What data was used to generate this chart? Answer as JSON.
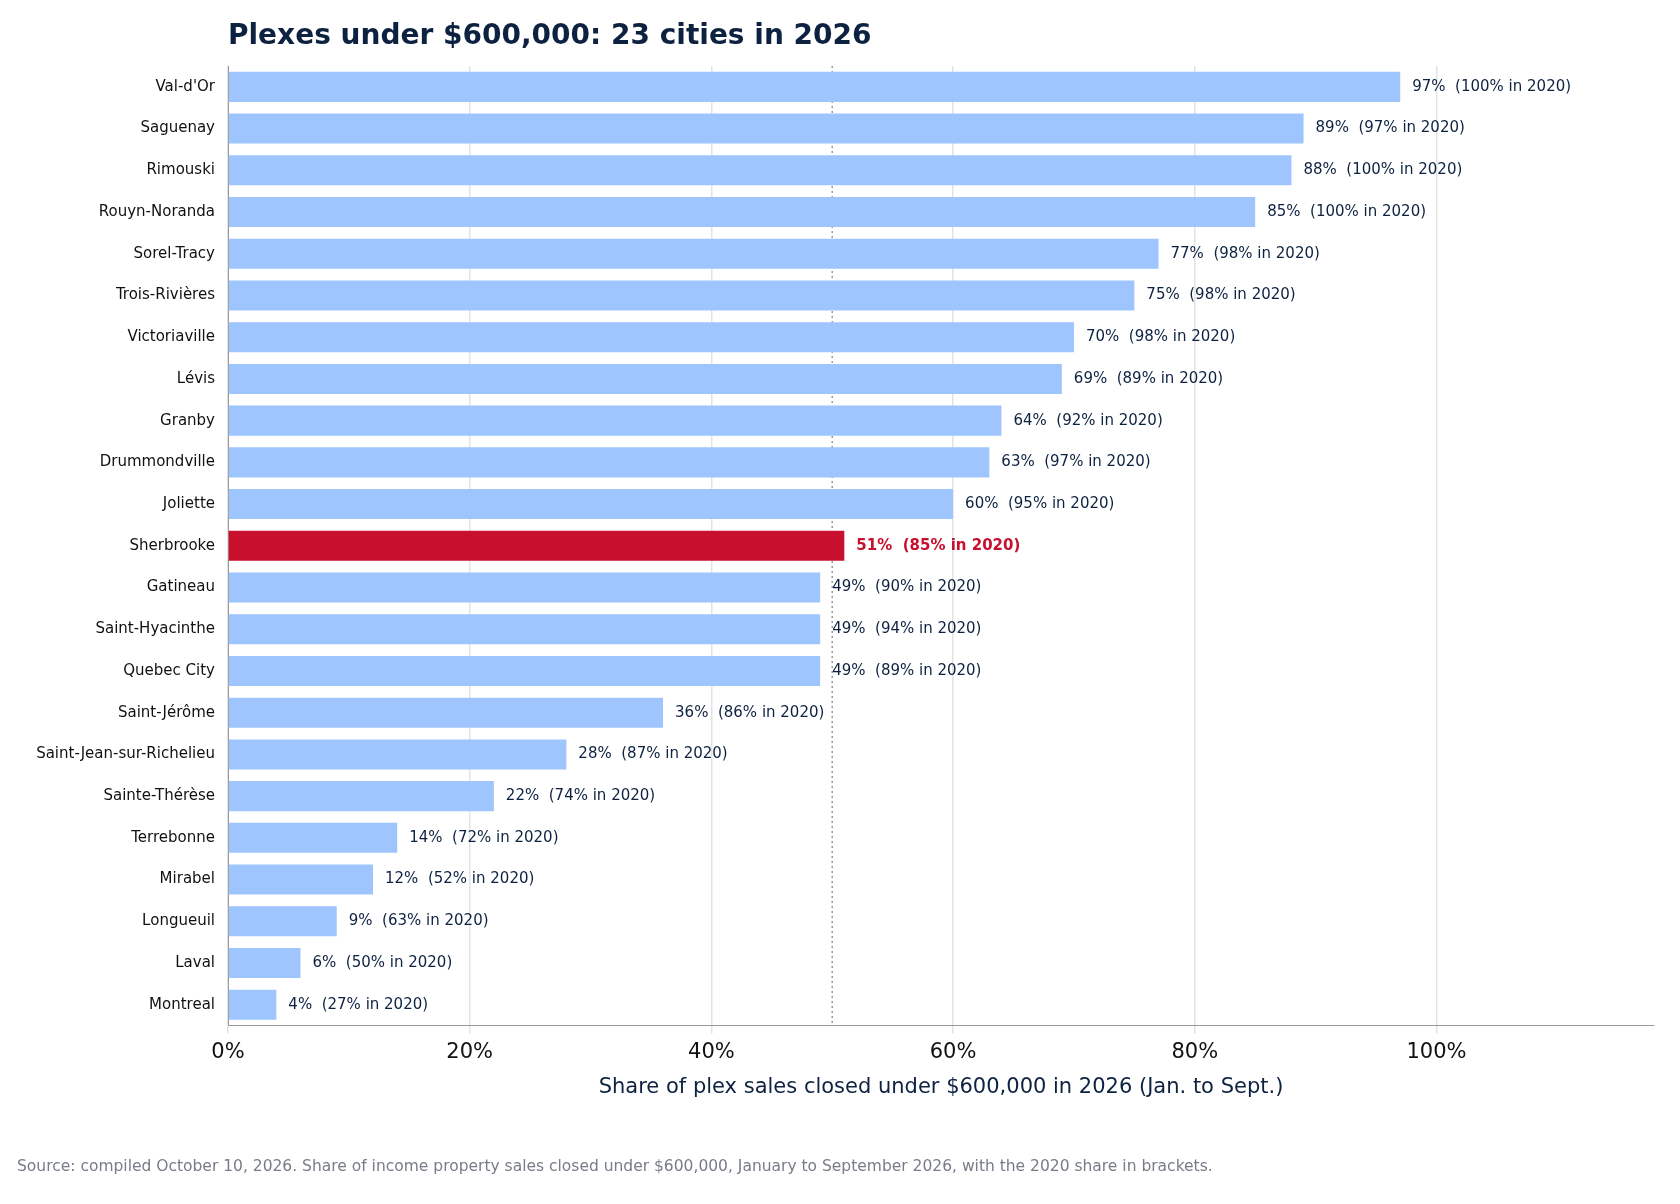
{
  "chart_data": {
    "type": "bar",
    "orientation": "horizontal",
    "title": "Plexes under $600,000: 23 cities in 2026",
    "xlabel": "Share of plex sales closed under $600,000 in 2026 (Jan. to Sept.)",
    "categories": [
      "Val-d'Or",
      "Saguenay",
      "Rimouski",
      "Rouyn-Noranda",
      "Sorel-Tracy",
      "Trois-Rivières",
      "Victoriaville",
      "Lévis",
      "Granby",
      "Drummondville",
      "Joliette",
      "Sherbrooke",
      "Gatineau",
      "Saint-Hyacinthe",
      "Quebec City",
      "Saint-Jérôme",
      "Saint-Jean-sur-Richelieu",
      "Sainte-Thérèse",
      "Terrebonne",
      "Mirabel",
      "Longueuil",
      "Laval",
      "Montreal"
    ],
    "values": [
      97,
      89,
      88,
      85,
      77,
      75,
      70,
      69,
      64,
      63,
      60,
      51,
      49,
      49,
      49,
      36,
      28,
      22,
      14,
      12,
      9,
      6,
      4
    ],
    "value_labels": [
      "97%  (100% in 2020)",
      "89%  (97% in 2020)",
      "88%  (100% in 2020)",
      "85%  (100% in 2020)",
      "77%  (98% in 2020)",
      "75%  (98% in 2020)",
      "70%  (98% in 2020)",
      "69%  (89% in 2020)",
      "64%  (92% in 2020)",
      "63%  (97% in 2020)",
      "60%  (95% in 2020)",
      "51%  (85% in 2020)",
      "49%  (90% in 2020)",
      "49%  (94% in 2020)",
      "49%  (89% in 2020)",
      "36%  (86% in 2020)",
      "28%  (87% in 2020)",
      "22%  (74% in 2020)",
      "14%  (72% in 2020)",
      "12%  (52% in 2020)",
      "9%  (63% in 2020)",
      "6%  (50% in 2020)",
      "4%  (27% in 2020)"
    ],
    "colors": [
      "#9ec5fe",
      "#9ec5fe",
      "#9ec5fe",
      "#9ec5fe",
      "#9ec5fe",
      "#9ec5fe",
      "#9ec5fe",
      "#9ec5fe",
      "#9ec5fe",
      "#9ec5fe",
      "#9ec5fe",
      "#c8102e",
      "#9ec5fe",
      "#9ec5fe",
      "#9ec5fe",
      "#9ec5fe",
      "#9ec5fe",
      "#9ec5fe",
      "#9ec5fe",
      "#9ec5fe",
      "#9ec5fe",
      "#9ec5fe",
      "#9ec5fe"
    ],
    "xlim": [
      0,
      118
    ],
    "xticks": [
      {
        "value": 0,
        "label": "0%"
      },
      {
        "value": 20,
        "label": "20%"
      },
      {
        "value": 40,
        "label": "40%"
      },
      {
        "value": 60,
        "label": "60%"
      },
      {
        "value": 80,
        "label": "80%"
      },
      {
        "value": 100,
        "label": "100%"
      }
    ],
    "ref_lines": [
      {
        "axis": "x",
        "value": 50,
        "color": "#999999",
        "line_style": "dotted"
      }
    ],
    "grid": "x",
    "legend": false,
    "annotations": [
      "Source: compiled October 10, 2026. Share of income property sales closed under $600,000, January to September 2026, with the 2020 share in brackets."
    ]
  }
}
